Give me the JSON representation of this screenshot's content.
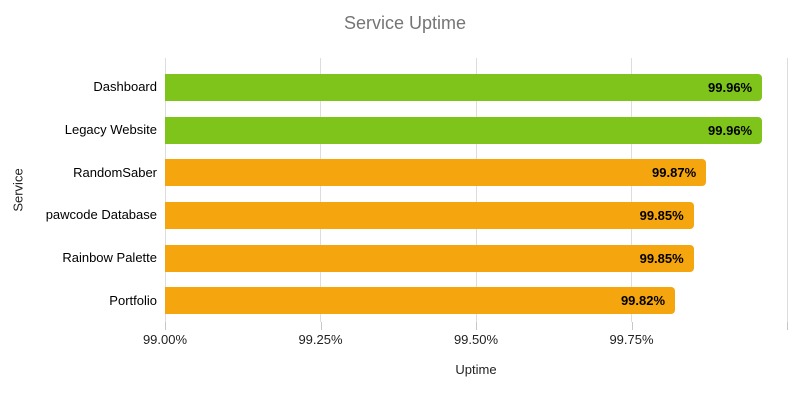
{
  "colors": {
    "background": "#ffffff",
    "title_text": "#757575",
    "bar_green": "#7ec41b",
    "bar_orange": "#f5a50d",
    "gridline": "#dddddd",
    "tick_mark": "#c7c7c7",
    "axis_text": "#222222",
    "category_text": "#000000",
    "value_text": "#000000"
  },
  "chart_data": {
    "type": "bar",
    "orientation": "horizontal",
    "title": "Service Uptime",
    "xlabel": "Uptime",
    "ylabel": "Service",
    "categories": [
      "Dashboard",
      "Legacy Website",
      "RandomSaber",
      "pawcode Database",
      "Rainbow Palette",
      "Portfolio"
    ],
    "values": [
      99.96,
      99.96,
      99.87,
      99.85,
      99.85,
      99.82
    ],
    "value_labels": [
      "99.96%",
      "99.96%",
      "99.87%",
      "99.85%",
      "99.85%",
      "99.82%"
    ],
    "bar_colors": [
      "#7ec41b",
      "#7ec41b",
      "#f5a50d",
      "#f5a50d",
      "#f5a50d",
      "#f5a50d"
    ],
    "xlim": [
      99.0,
      100.0
    ],
    "x_tick_step": 0.25,
    "x_tick_labels": [
      "99.00%",
      "99.25%",
      "99.50%",
      "99.75%"
    ],
    "grid": true,
    "legend": "none"
  }
}
